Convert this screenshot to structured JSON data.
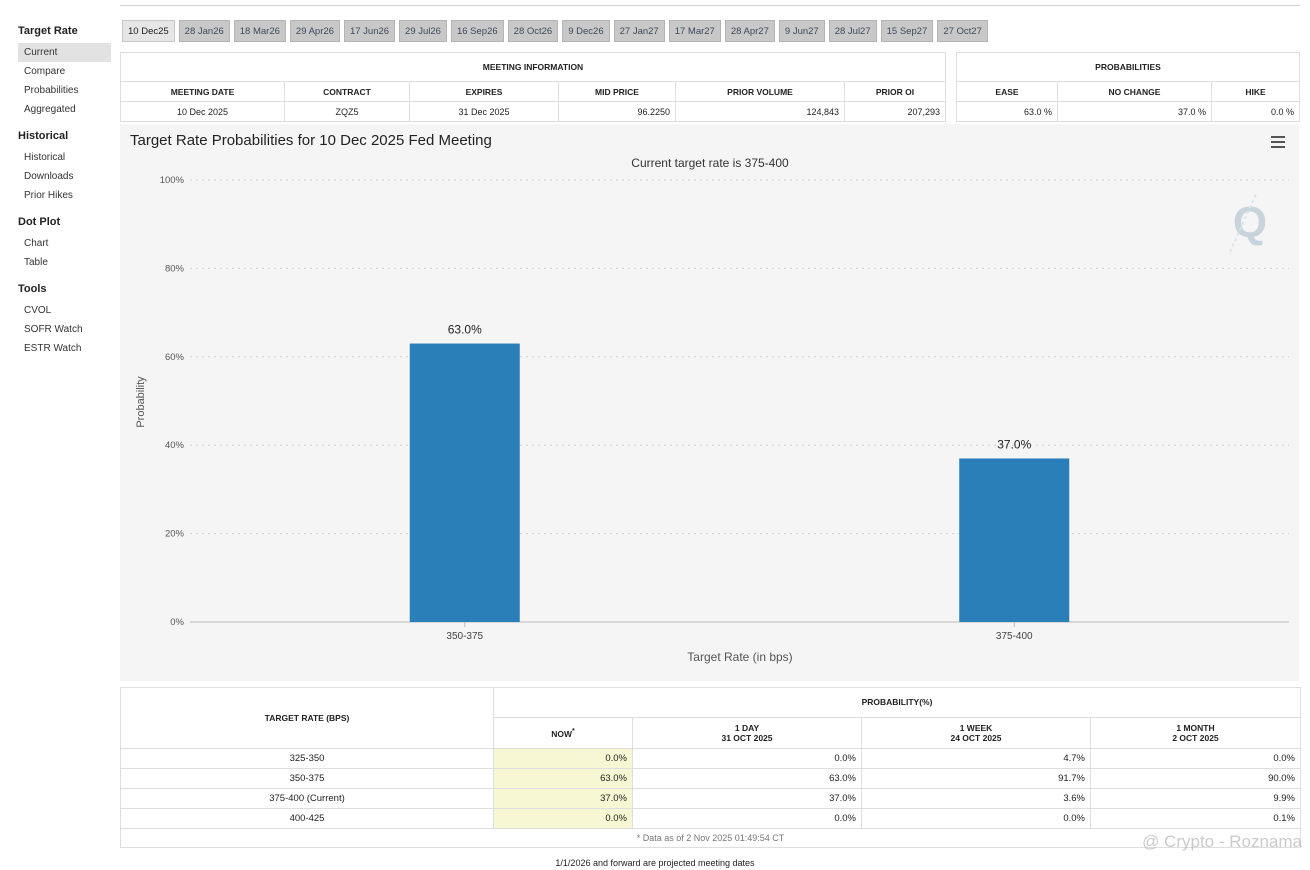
{
  "sidebar": {
    "sections": [
      {
        "title": "Target Rate",
        "items": [
          "Current",
          "Compare",
          "Probabilities",
          "Aggregated"
        ]
      },
      {
        "title": "Historical",
        "items": [
          "Historical",
          "Downloads",
          "Prior Hikes"
        ]
      },
      {
        "title": "Dot Plot",
        "items": [
          "Chart",
          "Table"
        ]
      },
      {
        "title": "Tools",
        "items": [
          "CVOL",
          "SOFR Watch",
          "ESTR Watch"
        ]
      }
    ]
  },
  "tabs": [
    "10 Dec25",
    "28 Jan26",
    "18 Mar26",
    "29 Apr26",
    "17 Jun26",
    "29 Jul26",
    "16 Sep26",
    "28 Oct26",
    "9 Dec26",
    "27 Jan27",
    "17 Mar27",
    "28 Apr27",
    "9 Jun27",
    "28 Jul27",
    "15 Sep27",
    "27 Oct27"
  ],
  "meeting_info": {
    "title": "MEETING INFORMATION",
    "headers": [
      "MEETING DATE",
      "CONTRACT",
      "EXPIRES",
      "MID PRICE",
      "PRIOR VOLUME",
      "PRIOR OI"
    ],
    "values": [
      "10 Dec 2025",
      "ZQZ5",
      "31 Dec 2025",
      "96.2250",
      "124,843",
      "207,293"
    ]
  },
  "probabilities": {
    "title": "PROBABILITIES",
    "headers": [
      "EASE",
      "NO CHANGE",
      "HIKE"
    ],
    "values": [
      "63.0 %",
      "37.0 %",
      "0.0 %"
    ]
  },
  "chart_data": {
    "type": "bar",
    "title": "Target Rate Probabilities for 10 Dec 2025 Fed Meeting",
    "subtitle": "Current target rate is 375-400",
    "categories": [
      "350-375",
      "375-400"
    ],
    "values": [
      63.0,
      37.0
    ],
    "data_labels": [
      "63.0%",
      "37.0%"
    ],
    "xlabel": "Target Rate (in bps)",
    "ylabel": "Probability",
    "ylim": [
      0,
      100
    ],
    "yticks": [
      0,
      20,
      40,
      60,
      80,
      100
    ],
    "ytick_labels": [
      "0%",
      "20%",
      "40%",
      "60%",
      "80%",
      "100%"
    ],
    "grid": true,
    "bar_color": "#2b7fb9"
  },
  "prob_table": {
    "rate_header": "TARGET RATE (BPS)",
    "prob_header": "PROBABILITY(%)",
    "columns": [
      {
        "line1": "NOW",
        "line2": ""
      },
      {
        "line1": "1 DAY",
        "line2": "31 OCT 2025"
      },
      {
        "line1": "1 WEEK",
        "line2": "24 OCT 2025"
      },
      {
        "line1": "1 MONTH",
        "line2": "2 OCT 2025"
      }
    ],
    "now_mark": "*",
    "rows": [
      {
        "rate": "325-350",
        "values": [
          "0.0%",
          "0.0%",
          "4.7%",
          "0.0%"
        ]
      },
      {
        "rate": "350-375",
        "values": [
          "63.0%",
          "63.0%",
          "91.7%",
          "90.0%"
        ]
      },
      {
        "rate": "375-400 (Current)",
        "values": [
          "37.0%",
          "37.0%",
          "3.6%",
          "9.9%"
        ]
      },
      {
        "rate": "400-425",
        "values": [
          "0.0%",
          "0.0%",
          "0.0%",
          "0.1%"
        ]
      }
    ],
    "note": "* Data as of 2 Nov 2025 01:49:54 CT"
  },
  "footnote": "1/1/2026 and forward are projected meeting dates",
  "watermark": "@ Crypto - Roznama"
}
